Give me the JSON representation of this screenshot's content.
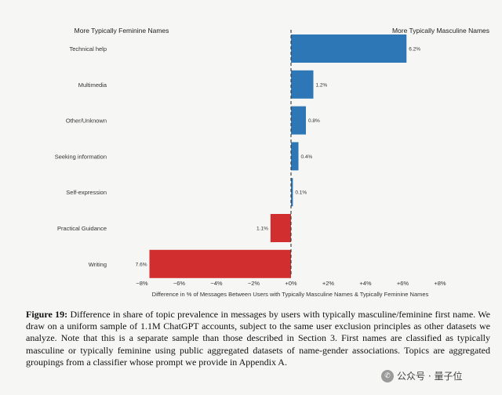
{
  "chart_data": {
    "type": "bar",
    "orientation": "horizontal",
    "categories": [
      "Technical help",
      "Multimedia",
      "Other/Unknown",
      "Seeking information",
      "Self-expression",
      "Practical Guidance",
      "Writing"
    ],
    "values": [
      6.2,
      1.2,
      0.8,
      0.4,
      0.1,
      -1.1,
      -7.6
    ],
    "value_labels": [
      "6.2%",
      "1.2%",
      "0.8%",
      "0.4%",
      "0.1%",
      "1.1%",
      "7.6%"
    ],
    "xlabel": "Difference in % of Messages Between Users with Typically Masculine Names & Typically Feminine Names",
    "xlim": [
      -8,
      8
    ],
    "xticks": [
      -8,
      -6,
      -4,
      -2,
      0,
      2,
      4,
      6,
      8
    ],
    "xtick_labels": [
      "−8%",
      "−6%",
      "−4%",
      "−2%",
      "+0%",
      "+2%",
      "+4%",
      "+6%",
      "+8%"
    ],
    "left_header": "More Typically Feminine Names",
    "right_header": "More Typically Masculine Names",
    "colors": {
      "positive": "#2d77b6",
      "negative": "#d12f2f",
      "zero_line": "#333333"
    },
    "grid": false,
    "legend": "none"
  },
  "caption": {
    "label": "Figure 19:",
    "text": "Difference in share of topic prevalence in messages by users with typically masculine/feminine first name. We draw on a uniform sample of 1.1M ChatGPT accounts, subject to the same user exclusion principles as other datasets we analyze. Note that this is a separate sample than those described in Section 3. First names are classified as typically masculine or typically feminine using public aggregated datasets of name-gender associations. Topics are aggregated groupings from a classifier whose prompt we provide in Appendix A."
  },
  "watermark": {
    "text": "公众号 · 量子位",
    "icon": "wechat-icon"
  }
}
